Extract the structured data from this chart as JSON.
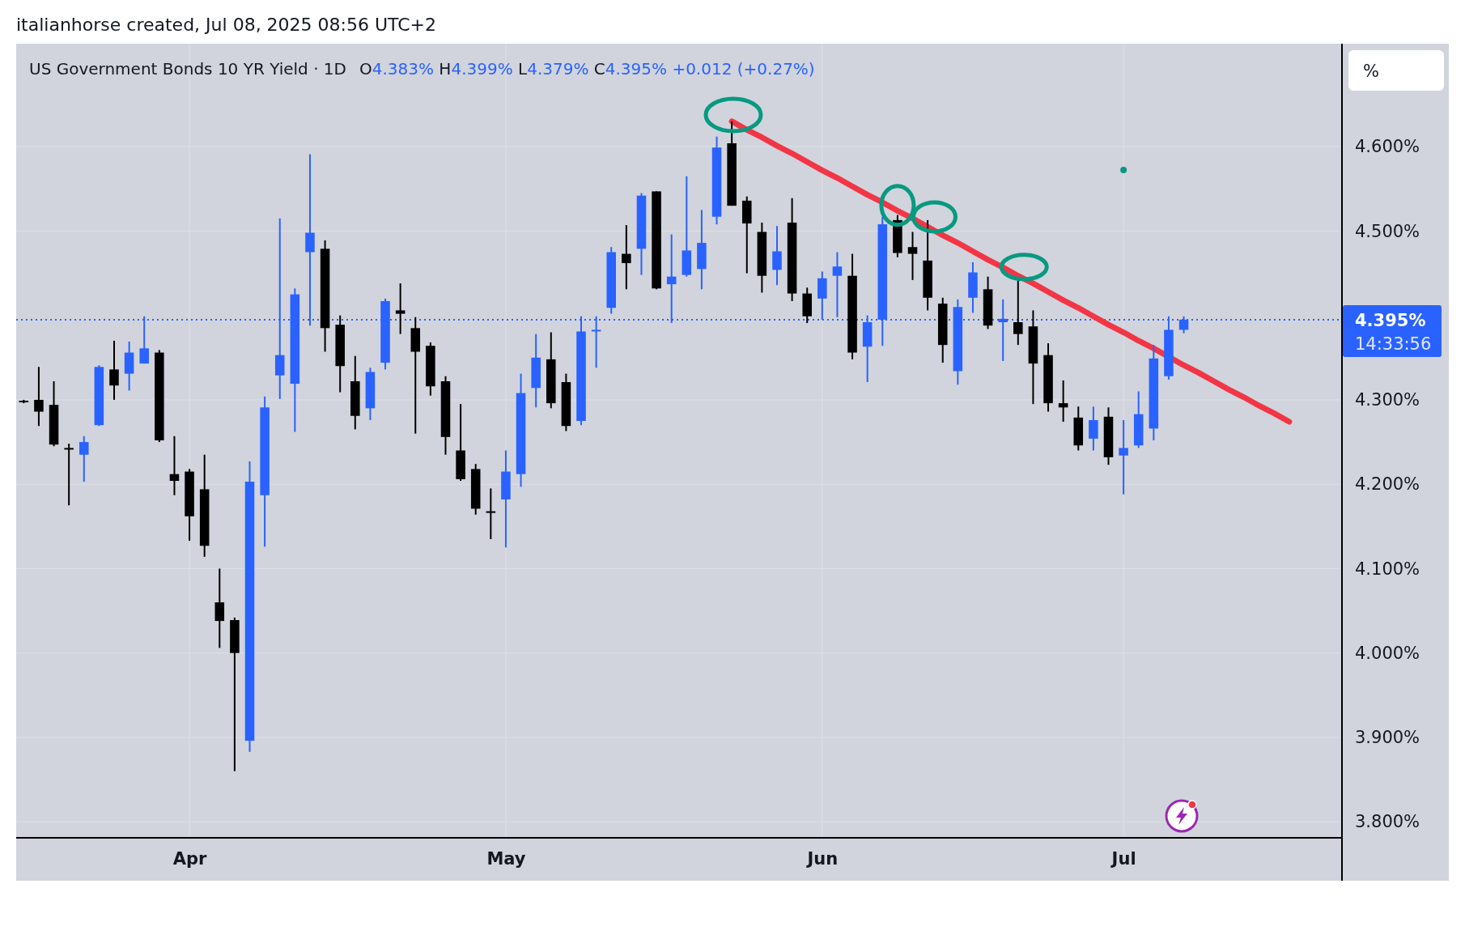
{
  "chart_data": {
    "type": "candlestick",
    "title": "US Government Bonds 10 YR Yield · 1D",
    "subtitle": "O4.383% H4.399% L4.379% C4.395% +0.012 (+0.27%)",
    "ylabel": "%",
    "annotations": [
      "italianhorse created, Jul 08, 2025 08:56 UTC+2",
      "14:33:56"
    ],
    "categories": [
      null,
      null,
      null,
      null,
      null,
      null,
      null,
      null,
      null,
      null,
      null,
      "Apr",
      null,
      null,
      null,
      null,
      null,
      null,
      null,
      null,
      null,
      null,
      null,
      null,
      null,
      null,
      null,
      null,
      null,
      null,
      null,
      null,
      "May",
      null,
      null,
      null,
      null,
      null,
      null,
      null,
      null,
      null,
      null,
      null,
      null,
      null,
      null,
      null,
      null,
      null,
      null,
      null,
      null,
      "Jun",
      null,
      null,
      null,
      null,
      null,
      null,
      null,
      null,
      null,
      null,
      null,
      null,
      null,
      null,
      null,
      null,
      null,
      null,
      null,
      "Jul",
      null,
      null,
      null,
      null,
      null,
      null,
      null,
      null,
      null,
      null,
      null,
      null,
      null,
      null
    ],
    "ohlc": [
      [
        4.298,
        4.3,
        4.296,
        4.298
      ],
      [
        4.3,
        4.339,
        4.269,
        4.286
      ],
      [
        4.294,
        4.322,
        4.245,
        4.247
      ],
      [
        4.242,
        4.248,
        4.175,
        4.242
      ],
      [
        4.235,
        4.257,
        4.203,
        4.25
      ],
      [
        4.27,
        4.341,
        4.269,
        4.339
      ],
      [
        4.336,
        4.37,
        4.3,
        4.317
      ],
      [
        4.331,
        4.369,
        4.311,
        4.356
      ],
      [
        4.343,
        4.399,
        4.343,
        4.361
      ],
      [
        4.356,
        4.359,
        4.25,
        4.252
      ],
      [
        4.212,
        4.257,
        4.187,
        4.204
      ],
      [
        4.215,
        4.218,
        4.133,
        4.162
      ],
      [
        4.194,
        4.235,
        4.114,
        4.127
      ],
      [
        4.06,
        4.1,
        4.006,
        4.038
      ],
      [
        4.039,
        4.042,
        3.86,
        4.0
      ],
      [
        3.896,
        4.227,
        3.883,
        4.203
      ],
      [
        4.187,
        4.304,
        4.126,
        4.291
      ],
      [
        4.329,
        4.515,
        4.301,
        4.353
      ],
      [
        4.319,
        4.432,
        4.262,
        4.425
      ],
      [
        4.475,
        4.591,
        4.388,
        4.498
      ],
      [
        4.479,
        4.489,
        4.357,
        4.385
      ],
      [
        4.389,
        4.4,
        4.309,
        4.34
      ],
      [
        4.322,
        4.352,
        4.265,
        4.281
      ],
      [
        4.29,
        4.338,
        4.276,
        4.333
      ],
      [
        4.344,
        4.42,
        4.336,
        4.417
      ],
      [
        4.406,
        4.438,
        4.378,
        4.402
      ],
      [
        4.385,
        4.398,
        4.26,
        4.357
      ],
      [
        4.364,
        4.368,
        4.305,
        4.316
      ],
      [
        4.322,
        4.328,
        4.235,
        4.256
      ],
      [
        4.24,
        4.295,
        4.204,
        4.206
      ],
      [
        4.218,
        4.224,
        4.164,
        4.171
      ],
      [
        4.167,
        4.195,
        4.135,
        4.167
      ],
      [
        4.182,
        4.24,
        4.125,
        4.215
      ],
      [
        4.212,
        4.331,
        4.197,
        4.308
      ],
      [
        4.314,
        4.378,
        4.291,
        4.35
      ],
      [
        4.348,
        4.38,
        4.29,
        4.296
      ],
      [
        4.321,
        4.331,
        4.263,
        4.269
      ],
      [
        4.275,
        4.399,
        4.27,
        4.381
      ],
      [
        4.382,
        4.399,
        4.338,
        4.382
      ],
      [
        4.409,
        4.481,
        4.402,
        4.475
      ],
      [
        4.473,
        4.507,
        4.431,
        4.462
      ],
      [
        4.479,
        4.545,
        4.448,
        4.542
      ],
      [
        4.547,
        4.547,
        4.431,
        4.432
      ],
      [
        4.437,
        4.496,
        4.391,
        4.446
      ],
      [
        4.448,
        4.565,
        4.446,
        4.477
      ],
      [
        4.455,
        4.525,
        4.431,
        4.486
      ],
      [
        4.517,
        4.612,
        4.508,
        4.599
      ],
      [
        4.604,
        4.63,
        4.53,
        4.53
      ],
      [
        4.536,
        4.541,
        4.45,
        4.509
      ],
      [
        4.499,
        4.51,
        4.427,
        4.447
      ],
      [
        4.454,
        4.506,
        4.436,
        4.476
      ],
      [
        4.51,
        4.539,
        4.417,
        4.426
      ],
      [
        4.426,
        4.433,
        4.391,
        4.399
      ],
      [
        4.42,
        4.452,
        4.395,
        4.444
      ],
      [
        4.447,
        4.475,
        4.398,
        4.458
      ],
      [
        4.447,
        4.473,
        4.348,
        4.356
      ],
      [
        4.363,
        4.4,
        4.321,
        4.392
      ],
      [
        4.395,
        4.517,
        4.364,
        4.508
      ],
      [
        4.513,
        4.519,
        4.469,
        4.474
      ],
      [
        4.481,
        4.499,
        4.442,
        4.473
      ],
      [
        4.465,
        4.513,
        4.406,
        4.421
      ],
      [
        4.414,
        4.421,
        4.344,
        4.365
      ],
      [
        4.334,
        4.419,
        4.318,
        4.41
      ],
      [
        4.421,
        4.463,
        4.403,
        4.451
      ],
      [
        4.431,
        4.446,
        4.384,
        4.388
      ],
      [
        4.392,
        4.419,
        4.346,
        4.396
      ],
      [
        4.392,
        4.444,
        4.365,
        4.378
      ],
      [
        4.387,
        4.406,
        4.295,
        4.343
      ],
      [
        4.353,
        4.367,
        4.286,
        4.296
      ],
      [
        4.296,
        4.323,
        4.274,
        4.291
      ],
      [
        4.279,
        4.292,
        4.24,
        4.246
      ],
      [
        4.254,
        4.292,
        4.24,
        4.276
      ],
      [
        4.28,
        4.291,
        4.223,
        4.232
      ],
      [
        4.234,
        4.276,
        4.188,
        4.243
      ],
      [
        4.246,
        4.31,
        4.243,
        4.283
      ],
      [
        4.266,
        4.365,
        4.252,
        4.349
      ],
      [
        4.328,
        4.399,
        4.324,
        4.383
      ],
      [
        4.383,
        4.399,
        4.379,
        4.395
      ],
      null,
      null,
      null,
      null,
      null,
      null,
      null,
      null,
      null,
      null
    ],
    "colors": [
      "#000000",
      "#000000",
      "#000000",
      "#000000",
      "#2962ff",
      "#2962ff",
      "#000000",
      "#2962ff",
      "#2962ff",
      "#000000",
      "#000000",
      "#000000",
      "#000000",
      "#000000",
      "#000000",
      "#2962ff",
      "#2962ff",
      "#2962ff",
      "#2962ff",
      "#2962ff",
      "#000000",
      "#000000",
      "#000000",
      "#2962ff",
      "#2962ff",
      "#000000",
      "#000000",
      "#000000",
      "#000000",
      "#000000",
      "#000000",
      "#000000",
      "#2962ff",
      "#2962ff",
      "#2962ff",
      "#000000",
      "#000000",
      "#2962ff",
      "#2962ff",
      "#2962ff",
      "#000000",
      "#2962ff",
      "#000000",
      "#2962ff",
      "#2962ff",
      "#2962ff",
      "#2962ff",
      "#000000",
      "#000000",
      "#000000",
      "#2962ff",
      "#000000",
      "#000000",
      "#2962ff",
      "#2962ff",
      "#000000",
      "#2962ff",
      "#2962ff",
      "#000000",
      "#000000",
      "#000000",
      "#000000",
      "#2962ff",
      "#2962ff",
      "#000000",
      "#2962ff",
      "#000000",
      "#000000",
      "#000000",
      "#000000",
      "#000000",
      "#2962ff",
      "#000000",
      "#2962ff",
      "#2962ff",
      "#2962ff",
      "#2962ff",
      "#2962ff",
      null,
      null,
      null,
      null,
      null,
      null,
      null,
      null,
      null,
      null
    ],
    "series": [
      {
        "type": "line",
        "color": "#f23645",
        "values": [
          null,
          null,
          null,
          null,
          null,
          null,
          null,
          null,
          null,
          null,
          null,
          null,
          null,
          null,
          null,
          null,
          null,
          null,
          null,
          null,
          null,
          null,
          null,
          null,
          null,
          null,
          null,
          null,
          null,
          null,
          null,
          null,
          null,
          null,
          null,
          null,
          null,
          null,
          null,
          null,
          null,
          null,
          null,
          null,
          null,
          null,
          null,
          4.63,
          4.62,
          4.611,
          4.601,
          4.592,
          4.582,
          4.572,
          4.563,
          4.553,
          4.543,
          4.534,
          4.524,
          4.515,
          4.505,
          4.495,
          4.486,
          4.476,
          4.466,
          4.457,
          4.447,
          4.438,
          4.428,
          4.418,
          4.409,
          4.399,
          4.389,
          4.38,
          4.37,
          4.361,
          null,
          4.341,
          4.332,
          4.322,
          4.312,
          4.303,
          4.293,
          4.284,
          4.274,
          null,
          null,
          null
        ]
      }
    ],
    "ref_lines": [
      {
        "axis": "y",
        "value": 4.395,
        "label": "4.395%",
        "color": "#2962ff",
        "line_style": "dotted"
      }
    ],
    "ylim": [
      3.781,
      4.722
    ],
    "yticks": [
      {
        "value": 3.8,
        "label": "3.800%"
      },
      {
        "value": 3.9,
        "label": "3.900%"
      },
      {
        "value": 4.0,
        "label": "4.000%"
      },
      {
        "value": 4.1,
        "label": "4.100%"
      },
      {
        "value": 4.2,
        "label": "4.200%"
      },
      {
        "value": 4.3,
        "label": "4.300%"
      },
      {
        "value": 4.5,
        "label": "4.500%"
      },
      {
        "value": 4.6,
        "label": "4.600%"
      }
    ],
    "grid": true
  }
}
